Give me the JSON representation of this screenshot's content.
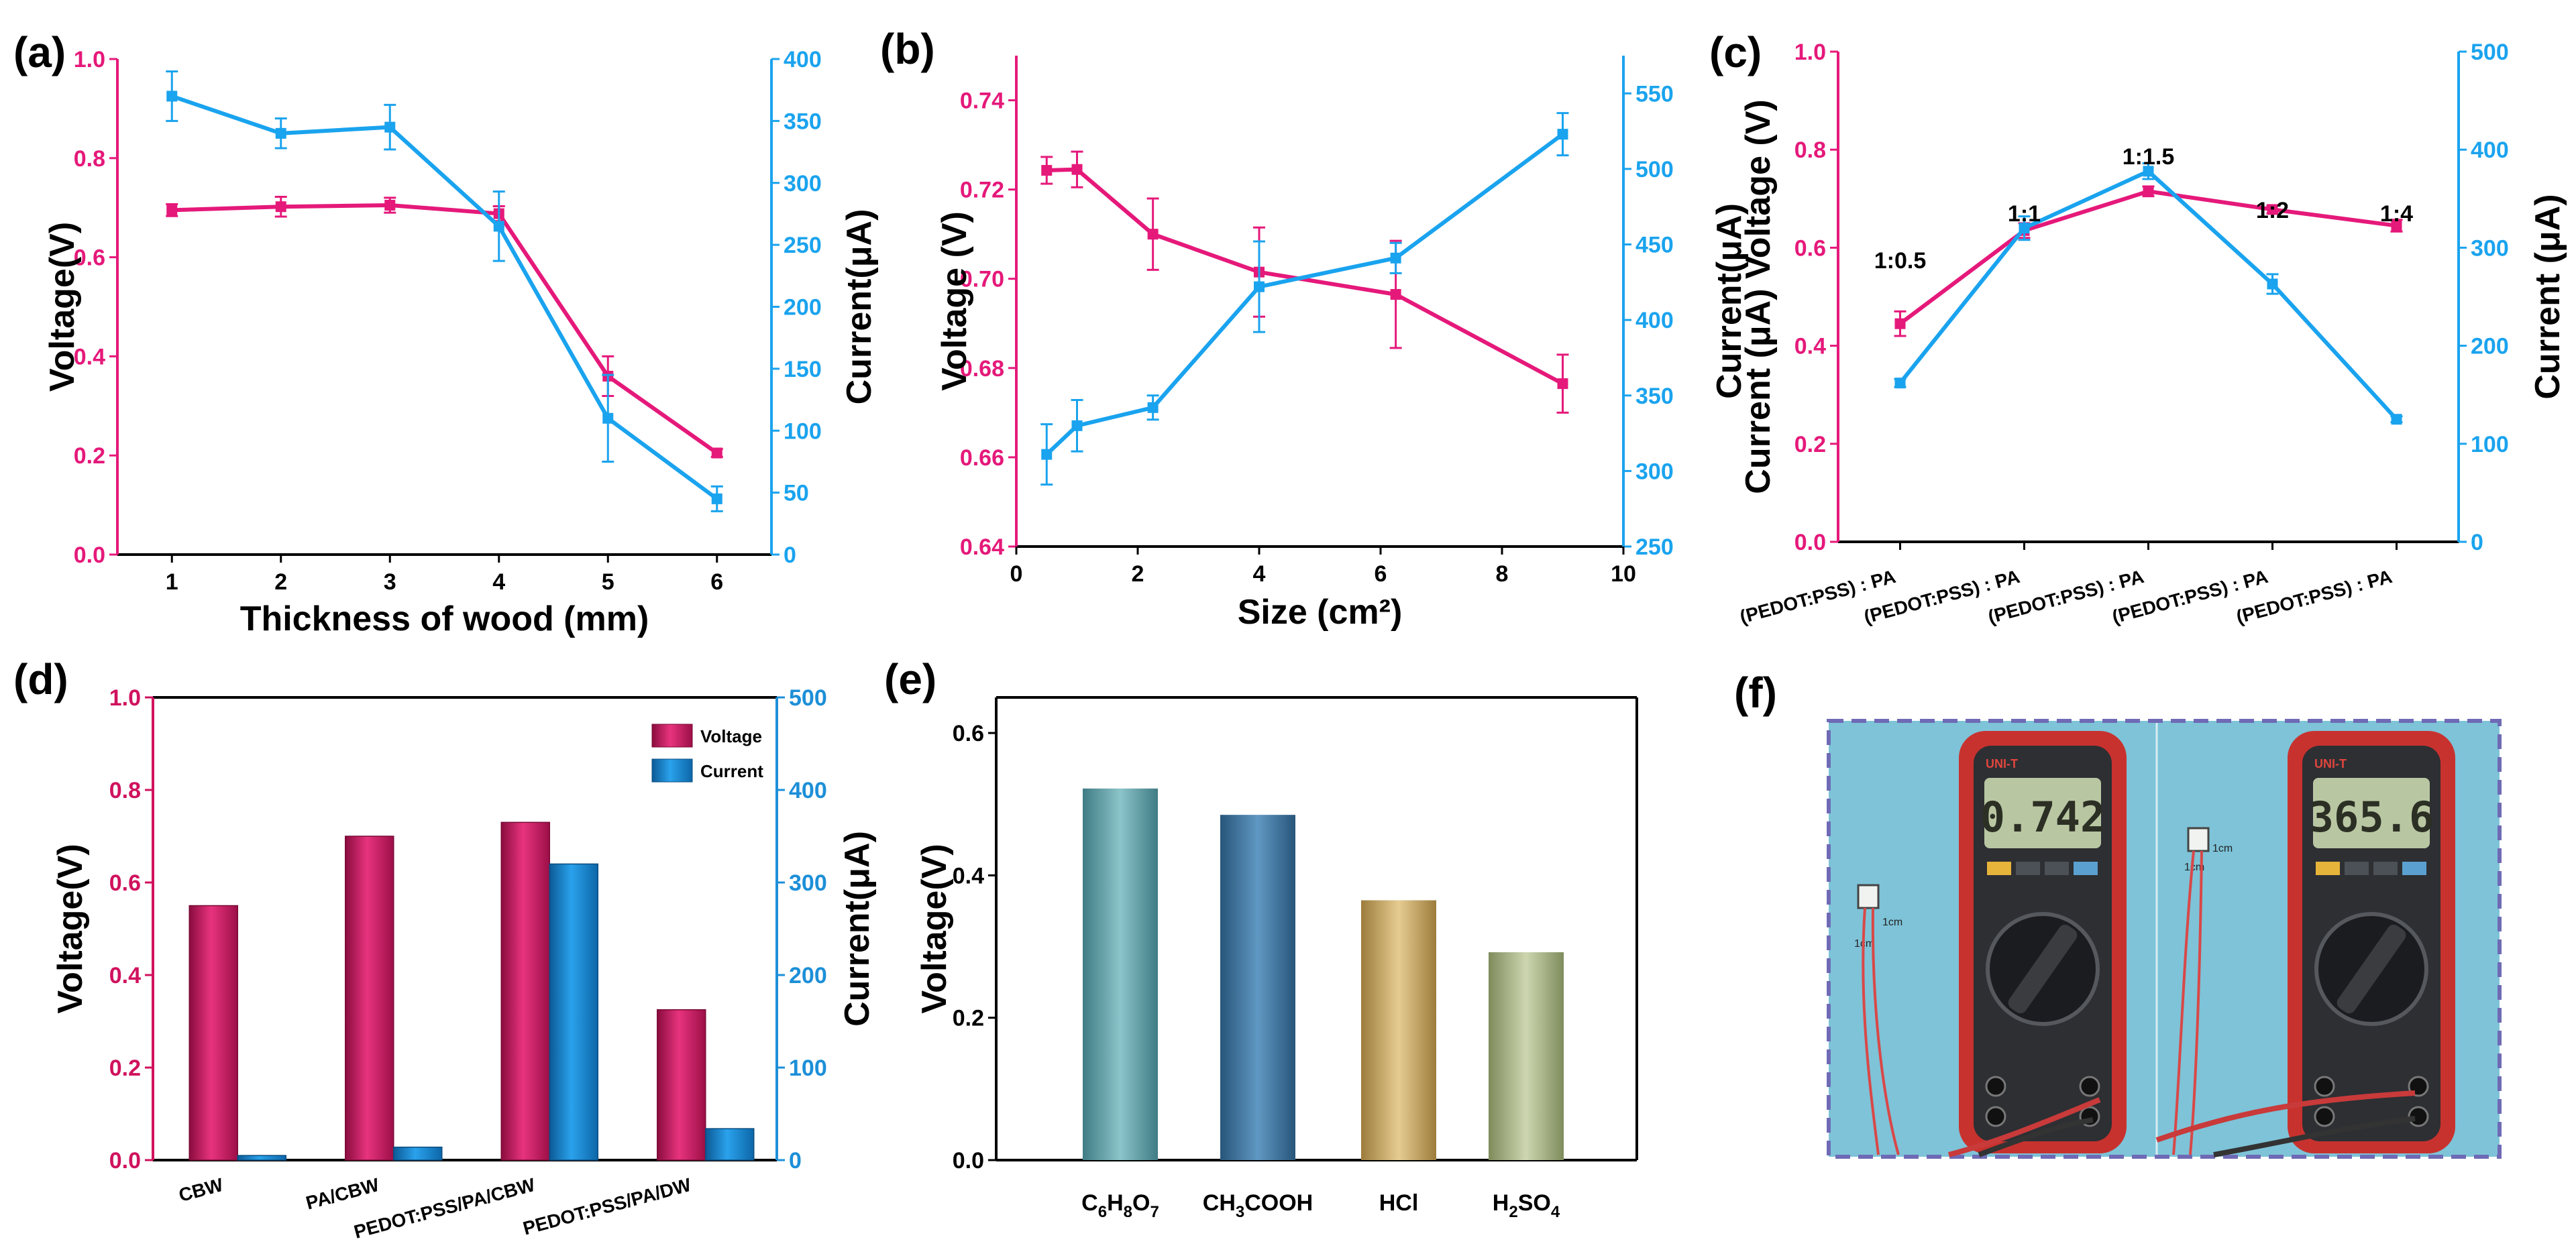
{
  "colors": {
    "voltage": "#e5197a",
    "current": "#1aa3ee",
    "voltage_bar": "#d0125e",
    "current_bar": "#1d8fd8",
    "axis": "#000000"
  },
  "chart_data": [
    {
      "id": "a",
      "panel_label": "(a)",
      "type": "line",
      "xlabel": "Thickness of wood (mm)",
      "ylabel": "Voltage(V)",
      "y2label": "Current(μA)",
      "xlim": [
        0.5,
        6.5
      ],
      "ylim": [
        0,
        1.0
      ],
      "y2lim": [
        0,
        400
      ],
      "x_ticks": [
        1,
        2,
        3,
        4,
        5,
        6
      ],
      "y_ticks": [
        0.0,
        0.2,
        0.4,
        0.6,
        0.8,
        1.0
      ],
      "y2_ticks": [
        0,
        50,
        100,
        150,
        200,
        250,
        300,
        350,
        400
      ],
      "y_tick_labels": [
        "0.0",
        "0.2",
        "0.4",
        "0.6",
        "0.8",
        "1.0"
      ],
      "series": [
        {
          "name": "Voltage",
          "axis": "left",
          "x": [
            1,
            2,
            3,
            4,
            5,
            6
          ],
          "values": [
            0.695,
            0.702,
            0.705,
            0.688,
            0.36,
            0.205
          ],
          "errors": [
            0.012,
            0.02,
            0.015,
            0.015,
            0.04,
            0.008
          ]
        },
        {
          "name": "Current",
          "axis": "right",
          "x": [
            1,
            2,
            3,
            4,
            5,
            6
          ],
          "values": [
            370,
            340,
            345,
            265,
            110,
            45
          ],
          "errors": [
            20,
            12,
            18,
            28,
            35,
            10
          ]
        }
      ]
    },
    {
      "id": "b",
      "panel_label": "(b)",
      "type": "line",
      "xlabel": "Size (cm²)",
      "ylabel": "Voltage (V)",
      "y2label": "Current(μA)",
      "xlim": [
        0,
        10
      ],
      "ylim": [
        0.64,
        0.75
      ],
      "y2lim": [
        250,
        575
      ],
      "x_ticks": [
        0,
        2,
        4,
        6,
        8,
        10
      ],
      "y_ticks": [
        0.64,
        0.66,
        0.68,
        0.7,
        0.72,
        0.74
      ],
      "y2_ticks": [
        250,
        300,
        350,
        400,
        450,
        500,
        550
      ],
      "y_tick_labels": [
        "0.64",
        "0.66",
        "0.68",
        "0.70",
        "0.72",
        "0.74"
      ],
      "series": [
        {
          "name": "Voltage",
          "axis": "left",
          "x": [
            0.5,
            1,
            2.25,
            4,
            6.25,
            9
          ],
          "values": [
            0.7243,
            0.7245,
            0.71,
            0.7015,
            0.6965,
            0.6765
          ],
          "errors": [
            0.003,
            0.004,
            0.008,
            0.01,
            0.012,
            0.0065
          ]
        },
        {
          "name": "Current",
          "axis": "right",
          "x": [
            0.5,
            1,
            2.25,
            4,
            6.25,
            9
          ],
          "values": [
            311,
            330,
            342,
            422,
            441,
            523
          ],
          "errors": [
            20,
            17,
            8,
            30,
            10,
            14
          ]
        }
      ]
    },
    {
      "id": "c",
      "panel_label": "(c)",
      "type": "line",
      "xlabel": "",
      "ylabel": "Current (μA) Voltage (V)",
      "y2label": "Current (μA)",
      "xlim": [
        -0.5,
        4.5
      ],
      "ylim": [
        0,
        1.0
      ],
      "y2lim": [
        0,
        500
      ],
      "y_ticks": [
        0.0,
        0.2,
        0.4,
        0.6,
        0.8,
        1.0
      ],
      "y2_ticks": [
        0,
        100,
        200,
        300,
        400,
        500
      ],
      "y_tick_labels": [
        "0.0",
        "0.2",
        "0.4",
        "0.6",
        "0.8",
        "1.0"
      ],
      "categories": [
        "(PEDOT:PSS) : PA",
        "(PEDOT:PSS) : PA",
        "(PEDOT:PSS) : PA",
        "(PEDOT:PSS) : PA",
        "(PEDOT:PSS) : PA"
      ],
      "annotations": [
        "1:0.5",
        "1:1",
        "1:1.5",
        "1:2",
        "1:4"
      ],
      "series": [
        {
          "name": "Voltage",
          "axis": "left",
          "x": [
            0,
            1,
            2,
            3,
            4
          ],
          "values": [
            0.445,
            0.635,
            0.715,
            0.678,
            0.645
          ],
          "errors": [
            0.025,
            0.015,
            0.01,
            0.008,
            0.012
          ]
        },
        {
          "name": "Current",
          "axis": "right",
          "x": [
            0,
            1,
            2,
            3,
            4
          ],
          "values": [
            162,
            320,
            378,
            263,
            125
          ],
          "errors": [
            4,
            12,
            8,
            10,
            3
          ]
        }
      ]
    },
    {
      "id": "d",
      "panel_label": "(d)",
      "type": "bar",
      "ylabel": "Voltage(V)",
      "y2label": "Current(μA)",
      "ylim": [
        0,
        1.0
      ],
      "y2lim": [
        0,
        500
      ],
      "y_ticks": [
        0.0,
        0.2,
        0.4,
        0.6,
        0.8,
        1.0
      ],
      "y2_ticks": [
        0,
        100,
        200,
        300,
        400,
        500
      ],
      "y_tick_labels": [
        "0.0",
        "0.2",
        "0.4",
        "0.6",
        "0.8",
        "1.0"
      ],
      "categories": [
        "CBW",
        "PA/CBW",
        "PEDOT:PSS/PA/CBW",
        "PEDOT:PSS/PA/DW"
      ],
      "legend": [
        "Voltage",
        "Current"
      ],
      "series": [
        {
          "name": "Voltage",
          "axis": "left",
          "values": [
            0.55,
            0.7,
            0.73,
            0.325
          ]
        },
        {
          "name": "Current",
          "axis": "right",
          "values": [
            5,
            14,
            320,
            34
          ]
        }
      ]
    },
    {
      "id": "e",
      "panel_label": "(e)",
      "type": "bar",
      "ylabel": "Voltage(V)",
      "ylim": [
        0,
        0.65
      ],
      "y_ticks": [
        0.0,
        0.2,
        0.4,
        0.6
      ],
      "y_tick_labels": [
        "0.0",
        "0.2",
        "0.4",
        "0.6"
      ],
      "categories": [
        "C6H8O7",
        "CH3COOH",
        "HCl",
        "H2SO4"
      ],
      "category_labels": [
        {
          "parts": [
            [
              "C",
              ""
            ],
            [
              "6",
              "sub"
            ],
            [
              "H",
              ""
            ],
            [
              "8",
              "sub"
            ],
            [
              "O",
              ""
            ],
            [
              "7",
              "sub"
            ]
          ]
        },
        {
          "parts": [
            [
              "CH",
              ""
            ],
            [
              "3",
              "sub"
            ],
            [
              "COOH",
              ""
            ]
          ]
        },
        {
          "parts": [
            [
              "HCl",
              ""
            ]
          ]
        },
        {
          "parts": [
            [
              "H",
              ""
            ],
            [
              "2",
              "sub"
            ],
            [
              "SO",
              ""
            ],
            [
              "4",
              "sub"
            ]
          ]
        }
      ],
      "bar_colors": [
        "#5e9ea5",
        "#3f77a0",
        "#c4a35e",
        "#a3b080"
      ],
      "series": [
        {
          "name": "Voltage",
          "values": [
            0.522,
            0.485,
            0.365,
            0.292
          ]
        }
      ]
    }
  ],
  "photo": {
    "panel_label": "(f)",
    "left_reading": "0.742",
    "right_reading": "365.6",
    "brand": "UNI-T",
    "sample_labels": [
      "1cm",
      "1cm",
      "1cm",
      "1cm"
    ]
  }
}
